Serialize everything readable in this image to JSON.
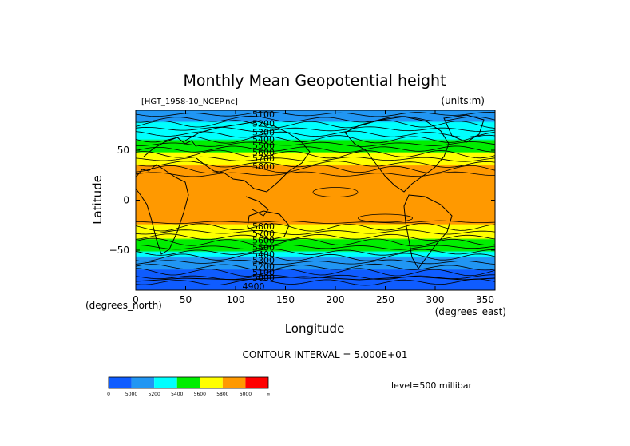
{
  "chart_data": {
    "type": "contour-map",
    "title": "Monthly Mean Geopotential height",
    "subtitle_left": "[HGT_1958-10_NCEP.nc]",
    "units_label": "(units:m)",
    "xlabel": "Longitude",
    "ylabel": "Latitude",
    "x_unit_label": "(degrees_east)",
    "y_unit_label": "(degrees_north)",
    "xlim": [
      0,
      360
    ],
    "ylim": [
      -90,
      90
    ],
    "x_ticks": [
      0,
      50,
      100,
      150,
      200,
      250,
      300,
      350
    ],
    "y_ticks": [
      50,
      0,
      -50
    ],
    "y_tick_labels": [
      "50",
      "0",
      "−50"
    ],
    "contour_interval_text": "CONTOUR INTERVAL = 5.000E+01",
    "level_text": "level=500 millibar",
    "contour_labels": [
      {
        "text": "5100",
        "x": 128,
        "y": 86
      },
      {
        "text": "5200",
        "x": 128,
        "y": 77
      },
      {
        "text": "5300",
        "x": 128,
        "y": 68
      },
      {
        "text": "5400",
        "x": 128,
        "y": 61
      },
      {
        "text": "5500",
        "x": 128,
        "y": 55
      },
      {
        "text": "5600",
        "x": 128,
        "y": 48
      },
      {
        "text": "5700",
        "x": 128,
        "y": 42
      },
      {
        "text": "5800",
        "x": 128,
        "y": 34
      },
      {
        "text": "5800",
        "x": 128,
        "y": -26
      },
      {
        "text": "5700",
        "x": 128,
        "y": -33
      },
      {
        "text": "5600",
        "x": 128,
        "y": -40
      },
      {
        "text": "5500",
        "x": 128,
        "y": -47
      },
      {
        "text": "5400",
        "x": 128,
        "y": -54
      },
      {
        "text": "5300",
        "x": 128,
        "y": -60
      },
      {
        "text": "5200",
        "x": 128,
        "y": -66
      },
      {
        "text": "5100",
        "x": 128,
        "y": -72
      },
      {
        "text": "5000",
        "x": 128,
        "y": -77
      },
      {
        "text": "4900",
        "x": 118,
        "y": -86
      }
    ],
    "colorbar": {
      "colors": [
        "#0f5cff",
        "#2196f3",
        "#00ffff",
        "#00ee00",
        "#ffff00",
        "#ff9900",
        "#ff0000"
      ],
      "labels": [
        "0",
        "5000",
        "5200",
        "5400",
        "5600",
        "5800",
        "6000",
        "∞"
      ]
    }
  }
}
